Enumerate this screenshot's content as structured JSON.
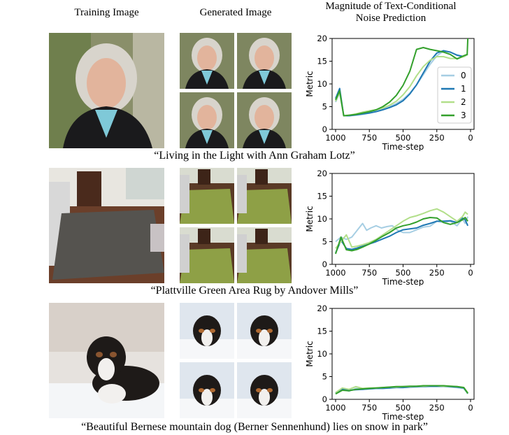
{
  "headers": {
    "training": "Training Image",
    "generated": "Generated Image",
    "magnitude_line1": "Magnitude of Text-Conditional",
    "magnitude_line2": "Noise Prediction"
  },
  "captions": [
    "“Living in the Light with Ann Graham Lotz”",
    "“Plattville Green Area Rug by Andover Mills”",
    "“Beautiful Bernese mountain dog (Berner Sennenhund) lies on snow in park”"
  ],
  "colors": {
    "series0": "#a6cee3",
    "series1": "#1f78b4",
    "series2": "#b2df8a",
    "series3": "#33a02c"
  },
  "chart_data": [
    {
      "type": "line",
      "xlabel": "Time-step",
      "ylabel": "Metric",
      "xlim": [
        1000,
        0
      ],
      "ylim": [
        0,
        20
      ],
      "xticks": [
        1000,
        750,
        500,
        250,
        0
      ],
      "yticks": [
        0,
        5,
        10,
        15,
        20
      ],
      "legend": "right",
      "series": [
        {
          "name": "0",
          "x": [
            1000,
            970,
            940,
            900,
            850,
            800,
            750,
            700,
            650,
            600,
            550,
            500,
            450,
            400,
            350,
            300,
            250,
            200,
            150,
            100,
            50,
            20
          ],
          "values": [
            6,
            8,
            3,
            3,
            3.1,
            3.3,
            3.6,
            4,
            4.5,
            5,
            5.7,
            6.6,
            8,
            9.8,
            12,
            14.3,
            16.2,
            17.2,
            17,
            16.4,
            16,
            16.5
          ]
        },
        {
          "name": "1",
          "x": [
            1000,
            970,
            940,
            900,
            850,
            800,
            750,
            700,
            650,
            600,
            550,
            500,
            450,
            400,
            350,
            300,
            250,
            200,
            150,
            100,
            50,
            20
          ],
          "values": [
            6.8,
            9,
            3,
            3,
            3.2,
            3.4,
            3.6,
            3.9,
            4.3,
            4.8,
            5.4,
            6.3,
            7.8,
            9.8,
            12.4,
            15,
            16.8,
            17.3,
            17,
            16.3,
            16,
            16.5
          ]
        },
        {
          "name": "2",
          "x": [
            1000,
            970,
            940,
            900,
            850,
            800,
            750,
            700,
            650,
            600,
            550,
            500,
            450,
            400,
            350,
            300,
            250,
            200,
            150,
            100,
            50,
            20
          ],
          "values": [
            6.2,
            8.2,
            3,
            3.1,
            3.4,
            3.8,
            4.1,
            4.3,
            4.7,
            5.3,
            6.2,
            7.6,
            9.4,
            11.8,
            13.8,
            15.2,
            16,
            16,
            15.6,
            15.6,
            16,
            16.5
          ]
        },
        {
          "name": "3",
          "x": [
            1000,
            970,
            940,
            900,
            850,
            800,
            750,
            700,
            650,
            600,
            550,
            500,
            450,
            400,
            350,
            300,
            250,
            200,
            150,
            100,
            50,
            25,
            20
          ],
          "values": [
            6.5,
            8.5,
            3,
            3.1,
            3.3,
            3.6,
            3.9,
            4.3,
            5,
            6,
            7.5,
            9.7,
            12.8,
            17.6,
            18,
            17.6,
            17.3,
            17,
            16.5,
            15.5,
            16.2,
            16.5,
            20
          ]
        }
      ]
    },
    {
      "type": "line",
      "xlabel": "Time-step",
      "ylabel": "Metric",
      "xlim": [
        1000,
        0
      ],
      "ylim": [
        0,
        20
      ],
      "xticks": [
        1000,
        750,
        500,
        250,
        0
      ],
      "yticks": [
        0,
        5,
        10,
        15,
        20
      ],
      "series": [
        {
          "name": "0",
          "x": [
            1000,
            960,
            920,
            880,
            840,
            800,
            770,
            740,
            700,
            660,
            620,
            580,
            540,
            500,
            450,
            400,
            350,
            300,
            250,
            200,
            150,
            100,
            60,
            40,
            20
          ],
          "values": [
            5,
            6,
            5.5,
            6,
            7.5,
            9,
            7.5,
            8,
            8.5,
            8,
            8.3,
            8.5,
            7.5,
            7,
            7,
            7.6,
            8.2,
            8.4,
            9.5,
            9.2,
            9.5,
            8.5,
            10,
            9,
            10.5
          ]
        },
        {
          "name": "1",
          "x": [
            1000,
            960,
            920,
            880,
            840,
            800,
            750,
            700,
            650,
            600,
            550,
            500,
            450,
            400,
            350,
            300,
            250,
            200,
            150,
            100,
            60,
            40,
            20
          ],
          "values": [
            2.5,
            5.3,
            3.5,
            3.3,
            3.6,
            4,
            4.5,
            5,
            5.6,
            6.2,
            7,
            7.6,
            7.8,
            8,
            8.6,
            9,
            9.5,
            9.5,
            9.6,
            9.2,
            10.2,
            9.8,
            8.5
          ]
        },
        {
          "name": "2",
          "x": [
            1000,
            960,
            920,
            880,
            840,
            800,
            750,
            700,
            650,
            600,
            550,
            500,
            450,
            400,
            350,
            300,
            250,
            200,
            150,
            100,
            60,
            40,
            20
          ],
          "values": [
            3.5,
            5,
            6.5,
            3.8,
            4,
            4.3,
            4.8,
            5.5,
            6.5,
            7.5,
            8.5,
            9.5,
            10.3,
            10.7,
            11.2,
            11.8,
            12.2,
            11.5,
            10.5,
            9.5,
            10.5,
            11.5,
            11
          ]
        },
        {
          "name": "3",
          "x": [
            1000,
            960,
            920,
            880,
            840,
            800,
            750,
            700,
            650,
            600,
            550,
            500,
            450,
            400,
            350,
            300,
            250,
            200,
            150,
            100,
            60,
            40,
            20
          ],
          "values": [
            2.3,
            6,
            3.2,
            3,
            3.3,
            3.8,
            4.5,
            5.3,
            6.2,
            7,
            8,
            8.5,
            8.8,
            9.3,
            10,
            10.3,
            10.2,
            9.2,
            8.8,
            9.2,
            9.8,
            10.3,
            9.5
          ]
        }
      ]
    },
    {
      "type": "line",
      "xlabel": "Time-step",
      "ylabel": "Metric",
      "xlim": [
        1000,
        0
      ],
      "ylim": [
        0,
        20
      ],
      "xticks": [
        1000,
        750,
        500,
        250,
        0
      ],
      "yticks": [
        0,
        5,
        10,
        15,
        20
      ],
      "series": [
        {
          "name": "0",
          "x": [
            1000,
            950,
            900,
            850,
            800,
            750,
            700,
            650,
            600,
            550,
            500,
            450,
            400,
            350,
            300,
            250,
            200,
            150,
            100,
            50,
            20
          ],
          "values": [
            1.3,
            2.2,
            1.8,
            2.4,
            2.2,
            2.3,
            2.4,
            2.5,
            2.5,
            2.6,
            2.6,
            2.7,
            2.7,
            2.8,
            2.8,
            2.8,
            2.8,
            2.7,
            2.6,
            2.4,
            1.2
          ]
        },
        {
          "name": "1",
          "x": [
            1000,
            950,
            900,
            850,
            800,
            750,
            700,
            650,
            600,
            550,
            500,
            450,
            400,
            350,
            300,
            250,
            200,
            150,
            100,
            50,
            20
          ],
          "values": [
            1.4,
            2.3,
            2,
            2.1,
            2.2,
            2.3,
            2.4,
            2.4,
            2.5,
            2.6,
            2.6,
            2.7,
            2.8,
            2.8,
            2.9,
            2.9,
            2.9,
            2.8,
            2.7,
            2.5,
            1.4
          ]
        },
        {
          "name": "2",
          "x": [
            1000,
            950,
            900,
            850,
            800,
            750,
            700,
            650,
            600,
            550,
            500,
            450,
            400,
            350,
            300,
            250,
            200,
            150,
            100,
            50,
            20
          ],
          "values": [
            1.5,
            2.5,
            2.2,
            2.8,
            2.4,
            2.5,
            2.5,
            2.6,
            2.7,
            2.7,
            2.8,
            2.8,
            2.9,
            2.9,
            3,
            3,
            2.9,
            2.9,
            2.8,
            2.6,
            1.5
          ]
        },
        {
          "name": "3",
          "x": [
            1000,
            950,
            900,
            850,
            800,
            750,
            700,
            650,
            600,
            550,
            500,
            450,
            400,
            350,
            300,
            250,
            200,
            150,
            100,
            50,
            20
          ],
          "values": [
            1.2,
            2,
            1.9,
            2.2,
            2.3,
            2.4,
            2.5,
            2.6,
            2.7,
            2.8,
            2.8,
            2.9,
            2.9,
            3,
            3,
            3,
            3,
            2.9,
            2.8,
            2.6,
            1.3
          ]
        }
      ]
    }
  ]
}
